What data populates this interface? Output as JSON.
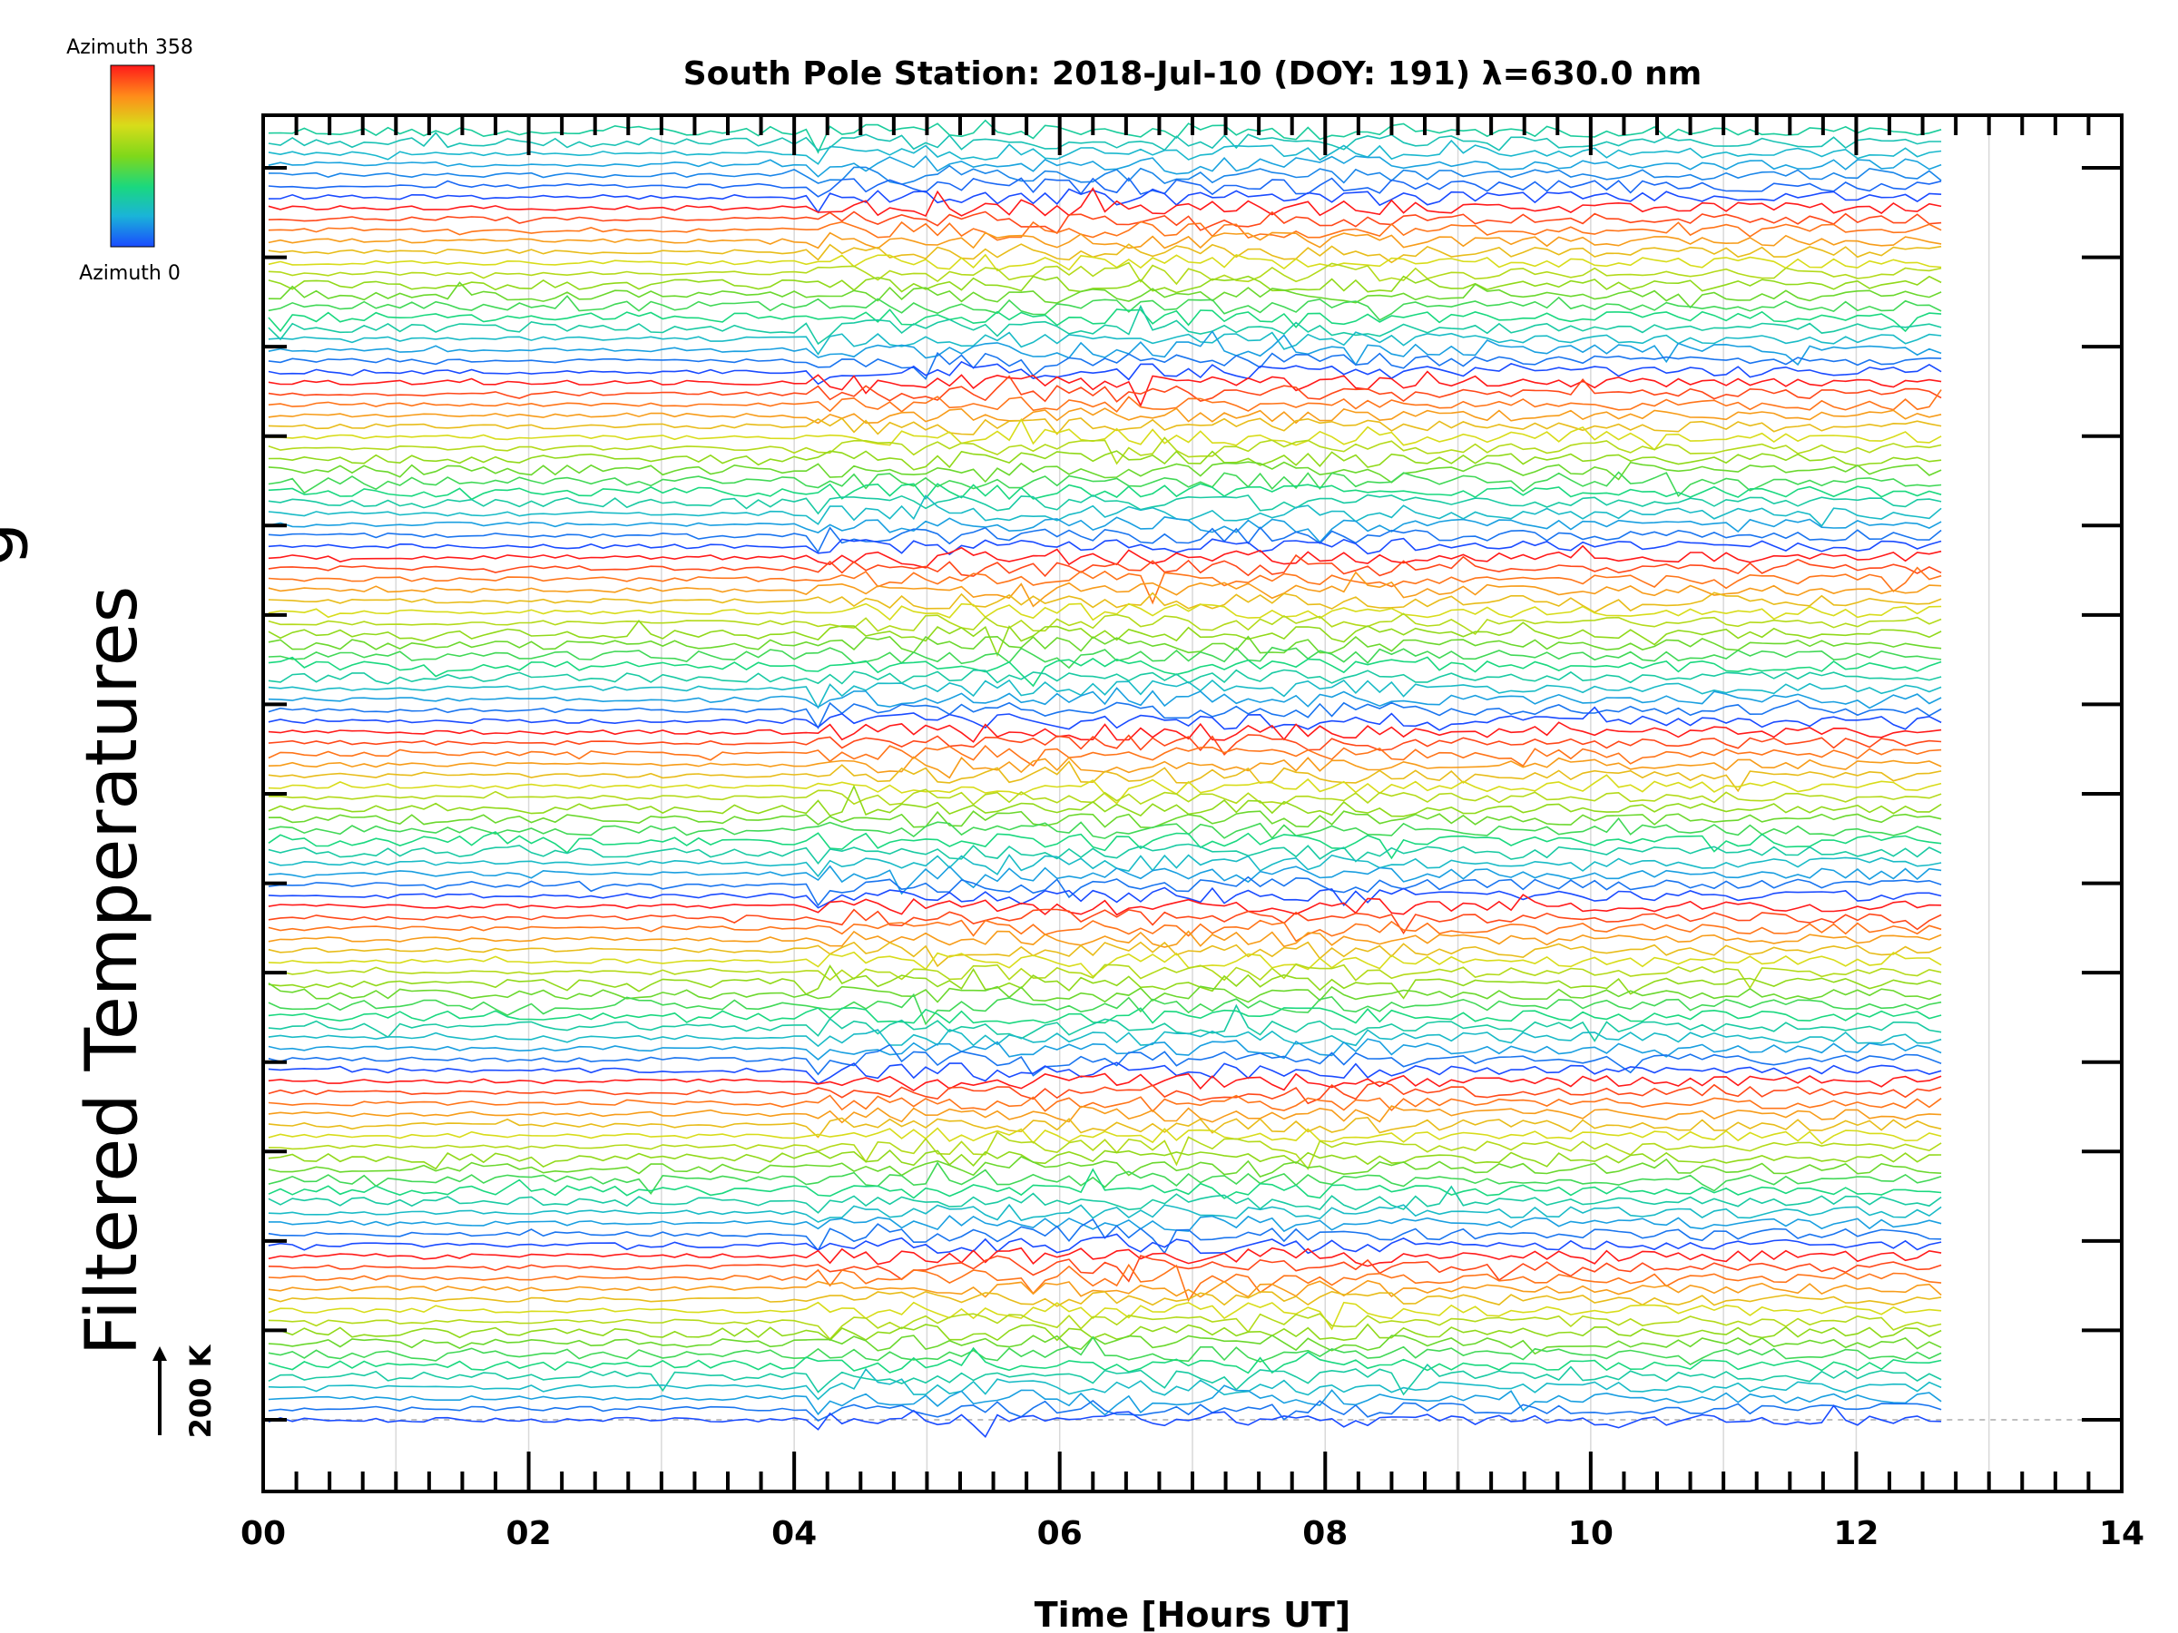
{
  "chart_data": {
    "type": "line",
    "title": "South Pole Station: 2018-Jul-10 (DOY: 191) λ=630.0 nm",
    "xlabel": "Time [Hours UT]",
    "ylabel": "Filtered Temperatures",
    "ylabel_partial": "g",
    "xlim": [
      0,
      14
    ],
    "x_ticks": [
      "00",
      "02",
      "04",
      "06",
      "08",
      "10",
      "12",
      "14"
    ],
    "scale_bar_label": "200 K",
    "grid": "vertical",
    "colorbar": {
      "top_label": "Azimuth 358",
      "bottom_label": "Azimuth 0",
      "colors": [
        "#ff1a1a",
        "#ff8c1a",
        "#d8dc1a",
        "#7fd81a",
        "#1ad87f",
        "#1ab4d8",
        "#1a4bff"
      ]
    },
    "series_layout": {
      "groups": 7,
      "lines_per_group": 16,
      "data_end_hour": 12.65,
      "start_disturbance_hour": 4.1
    }
  }
}
